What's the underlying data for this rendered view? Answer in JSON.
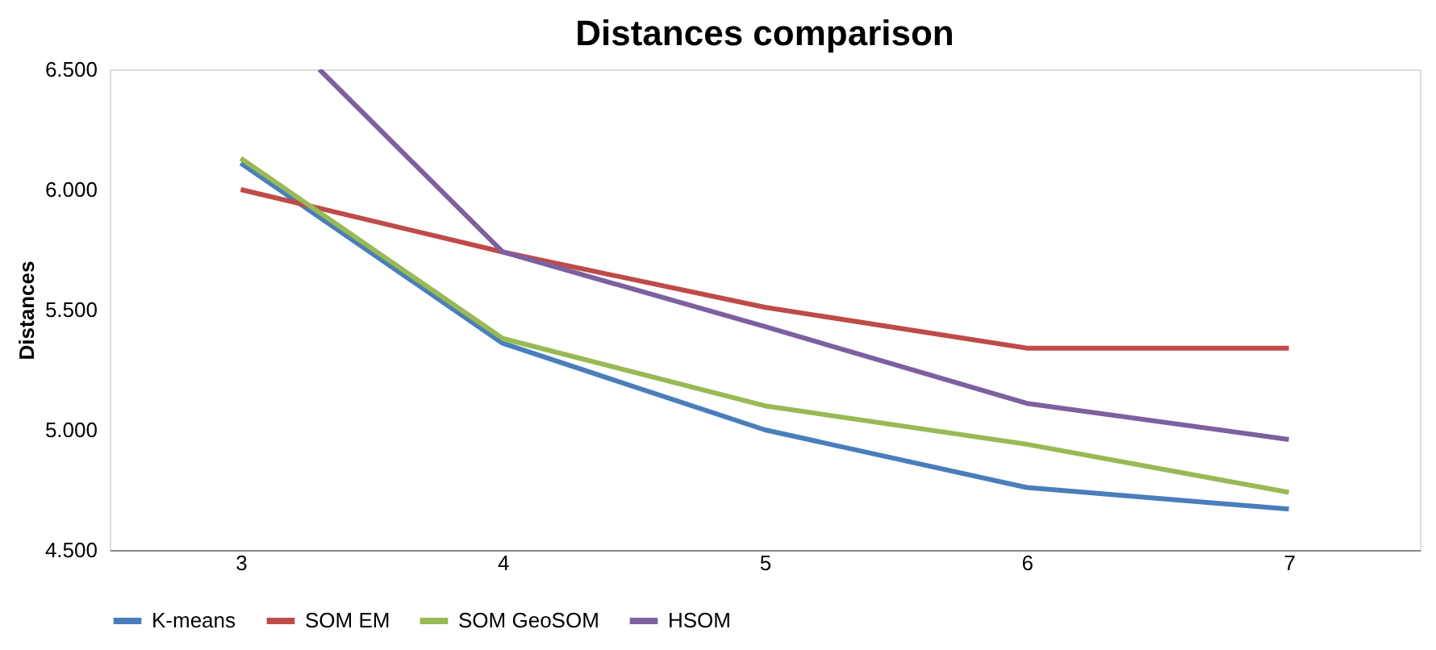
{
  "chart_data": {
    "type": "line",
    "title": "Distances comparison",
    "ylabel": "Distances",
    "x": [
      3,
      4,
      5,
      6,
      7
    ],
    "xlim": [
      2.5,
      7.5
    ],
    "xticks": [
      3,
      4,
      5,
      6,
      7
    ],
    "ylim": [
      4500,
      6500
    ],
    "yticks": [
      {
        "value": 4500,
        "label": "4.500"
      },
      {
        "value": 5000,
        "label": "5.000"
      },
      {
        "value": 5500,
        "label": "5.500"
      },
      {
        "value": 6000,
        "label": "6.000"
      },
      {
        "value": 6500,
        "label": "6.500"
      }
    ],
    "series": [
      {
        "name": "K-means",
        "color": "#4a7ebb",
        "values": [
          6110,
          5360,
          5000,
          4760,
          4670
        ]
      },
      {
        "name": "SOM EM",
        "color": "#be4b48",
        "values": [
          6000,
          5740,
          5510,
          5340,
          5340
        ]
      },
      {
        "name": "SOM GeoSOM",
        "color": "#98b954",
        "values": [
          6130,
          5380,
          5100,
          4940,
          4740
        ]
      },
      {
        "name": "HSOM",
        "color": "#7d60a0",
        "x": [
          3.3,
          4,
          5,
          6,
          7
        ],
        "values": [
          6500,
          5740,
          5430,
          5110,
          4960
        ]
      }
    ],
    "legend": "bottom",
    "grid": false
  }
}
